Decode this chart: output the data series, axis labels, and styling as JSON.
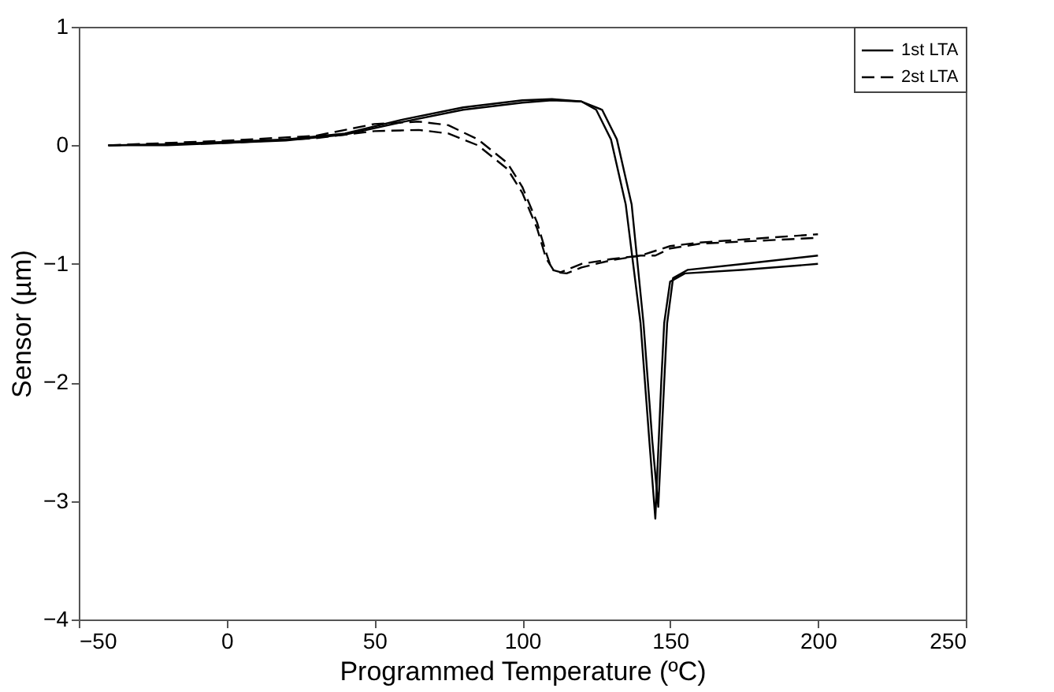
{
  "chart_data": {
    "type": "line",
    "xlabel": "Programmed Temperature (ºC)",
    "ylabel": "Sensor (µm)",
    "xlim": [
      -50,
      250
    ],
    "ylim": [
      -4,
      1
    ],
    "xticks": [
      -50,
      0,
      50,
      100,
      150,
      200,
      250
    ],
    "yticks": [
      -4,
      -3,
      -2,
      -1,
      0,
      1
    ],
    "grid": false,
    "legend": "top right",
    "marker": "none",
    "series": [
      {
        "name": "1st LTA",
        "color": "#000000",
        "line_style": "solid",
        "x": [
          -40,
          -20,
          0,
          20,
          40,
          60,
          80,
          100,
          110,
          120,
          125,
          130,
          135,
          140,
          143,
          145,
          147,
          148,
          150,
          155,
          175,
          200
        ],
        "values": [
          0,
          0.01,
          0.03,
          0.05,
          0.1,
          0.22,
          0.32,
          0.38,
          0.39,
          0.37,
          0.3,
          0.05,
          -0.5,
          -1.5,
          -2.5,
          -3.15,
          -2.0,
          -1.5,
          -1.15,
          -1.08,
          -1.05,
          -1.0
        ]
      },
      {
        "name": "2st LTA",
        "color": "#000000",
        "line_style": "dashed",
        "x": [
          -40,
          0,
          30,
          50,
          65,
          75,
          85,
          95,
          100,
          105,
          108,
          111,
          115,
          120,
          130,
          140,
          145,
          150,
          160,
          200
        ],
        "values": [
          0,
          0.02,
          0.06,
          0.12,
          0.13,
          0.1,
          0,
          -0.2,
          -0.4,
          -0.7,
          -0.95,
          -1.07,
          -1.08,
          -1.03,
          -0.97,
          -0.93,
          -0.93,
          -0.87,
          -0.83,
          -0.78
        ]
      },
      {
        "color": "#000000",
        "line_style": "solid",
        "x": [
          -40,
          -20,
          0,
          20,
          40,
          60,
          80,
          100,
          110,
          120,
          127,
          132,
          137,
          141,
          144,
          146,
          148,
          149,
          151,
          156,
          175,
          200
        ],
        "values": [
          0,
          0.0,
          0.02,
          0.04,
          0.09,
          0.2,
          0.3,
          0.36,
          0.38,
          0.37,
          0.3,
          0.05,
          -0.5,
          -1.5,
          -2.5,
          -3.05,
          -2.0,
          -1.5,
          -1.12,
          -1.05,
          -1.0,
          -0.93
        ]
      },
      {
        "color": "#000000",
        "line_style": "dashed",
        "x": [
          -40,
          0,
          30,
          50,
          65,
          75,
          85,
          95,
          100,
          105,
          108,
          110,
          113,
          120,
          130,
          140,
          150,
          160,
          200
        ],
        "values": [
          0,
          0.04,
          0.08,
          0.18,
          0.2,
          0.17,
          0.05,
          -0.15,
          -0.35,
          -0.65,
          -0.9,
          -1.05,
          -1.07,
          -1.0,
          -0.96,
          -0.93,
          -0.85,
          -0.82,
          -0.75
        ]
      }
    ]
  }
}
